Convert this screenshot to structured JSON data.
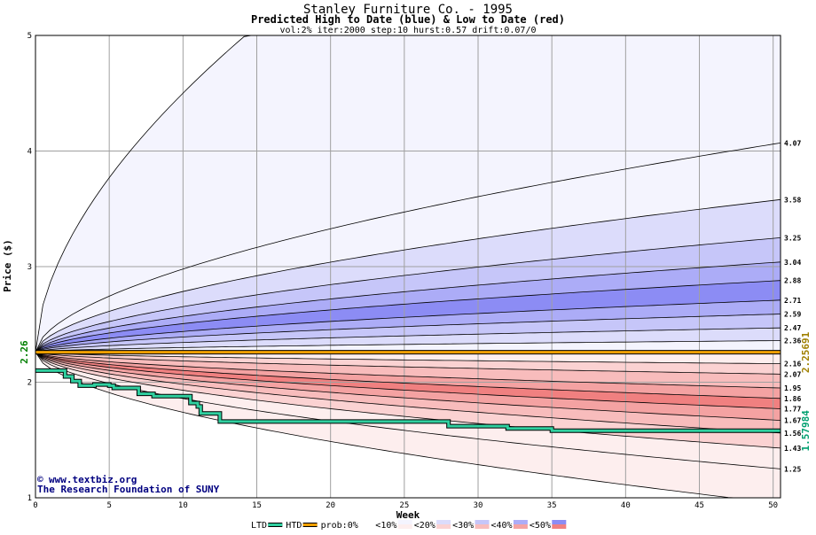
{
  "chart_data": {
    "type": "area",
    "title": "Stanley Furniture Co. - 1995",
    "subtitle": "Predicted High to Date (blue) &  Low to Date (red)",
    "params": "vol:2% iter:2000 step:10 hurst:0.57 drift:0.07/0",
    "xlabel": "Week",
    "ylabel": "Price ($)",
    "xlim": [
      0,
      50.5
    ],
    "ylim": [
      1,
      5
    ],
    "x_ticks": [
      0,
      5,
      10,
      15,
      20,
      25,
      30,
      35,
      40,
      45,
      50
    ],
    "y_ticks": [
      1,
      2,
      3,
      4,
      5
    ],
    "grid": true,
    "start_price": 2.26,
    "start_price_label": "2.26",
    "current_price": 2.25691,
    "current_price_label": "2.25691",
    "ltd_final": 1.57984,
    "ltd_final_label": "1.57984",
    "high_quantiles": [
      {
        "label": "4.07",
        "end": 4.07,
        "fill": "#f4f4fe"
      },
      {
        "label": "3.58",
        "end": 3.58,
        "fill": "#dcdcfb"
      },
      {
        "label": "3.25",
        "end": 3.25,
        "fill": "#c6c6f9"
      },
      {
        "label": "3.04",
        "end": 3.04,
        "fill": "#acacf7"
      },
      {
        "label": "2.88",
        "end": 2.88,
        "fill": "#8c8cf4"
      },
      {
        "label": "2.71",
        "end": 2.71,
        "fill": "#acacf7"
      },
      {
        "label": "2.59",
        "end": 2.59,
        "fill": "#c6c6f9"
      },
      {
        "label": "2.47",
        "end": 2.47,
        "fill": "#dcdcfb"
      },
      {
        "label": "2.36",
        "end": 2.36,
        "fill": "#f4f4fe"
      }
    ],
    "low_quantiles": [
      {
        "label": "2.16",
        "end": 2.16,
        "fill": "#fdeeee"
      },
      {
        "label": "2.07",
        "end": 2.07,
        "fill": "#fbd2d2"
      },
      {
        "label": "1.95",
        "end": 1.95,
        "fill": "#f8bcbc"
      },
      {
        "label": "1.86",
        "end": 1.86,
        "fill": "#f4a2a2"
      },
      {
        "label": "1.77",
        "end": 1.77,
        "fill": "#f08080"
      },
      {
        "label": "1.67",
        "end": 1.67,
        "fill": "#f4a2a2"
      },
      {
        "label": "1.56",
        "end": 1.56,
        "fill": "#f8bcbc"
      },
      {
        "label": "1.43",
        "end": 1.43,
        "fill": "#fbd2d2"
      },
      {
        "label": "1.25",
        "end": 1.25,
        "fill": "#fdeeee"
      }
    ],
    "outer_high_fill": "#f4f4fe",
    "outer_low_fill": "#fdeeee",
    "htd_series": {
      "name": "HTD",
      "color": "#f0a000",
      "values": [
        [
          0,
          2.26
        ],
        [
          50.5,
          2.26
        ]
      ]
    },
    "ltd_series": {
      "name": "LTD",
      "color": "#30d0a0",
      "steps": [
        [
          0,
          2.1
        ],
        [
          2,
          2.1
        ],
        [
          2,
          2.05
        ],
        [
          2.5,
          2.05
        ],
        [
          2.5,
          2.01
        ],
        [
          3,
          2.01
        ],
        [
          3,
          1.97
        ],
        [
          4,
          1.97
        ],
        [
          4,
          1.98
        ],
        [
          5,
          1.98
        ],
        [
          5,
          1.97
        ],
        [
          5.3,
          1.97
        ],
        [
          5.3,
          1.95
        ],
        [
          7,
          1.95
        ],
        [
          7,
          1.9
        ],
        [
          8,
          1.9
        ],
        [
          8,
          1.88
        ],
        [
          10.5,
          1.88
        ],
        [
          10.5,
          1.82
        ],
        [
          11,
          1.82
        ],
        [
          11,
          1.79
        ],
        [
          11.2,
          1.79
        ],
        [
          11.2,
          1.73
        ],
        [
          12.5,
          1.73
        ],
        [
          12.5,
          1.66
        ],
        [
          28,
          1.66
        ],
        [
          28,
          1.62
        ],
        [
          32,
          1.62
        ],
        [
          32,
          1.6
        ],
        [
          35,
          1.6
        ],
        [
          35,
          1.58
        ],
        [
          50.5,
          1.58
        ]
      ]
    },
    "legend": [
      {
        "label": "LTD",
        "color": "#30d0a0"
      },
      {
        "label": "HTD",
        "color": "#f0a000"
      },
      {
        "label": "prob:0%",
        "color": "#ffffff"
      },
      {
        "label": "<10%",
        "color": "#f4f4fe"
      },
      {
        "label": "<20%",
        "color": "#dcdcfb"
      },
      {
        "label": "<30%",
        "color": "#c6c6f9"
      },
      {
        "label": "<40%",
        "color": "#acacf7"
      },
      {
        "label": "<50%",
        "color": "#8c8cf4"
      }
    ],
    "legend_low_colors": [
      "#ffffff",
      "#fdeeee",
      "#fbd2d2",
      "#f8bcbc",
      "#f4a2a2",
      "#f08080"
    ]
  },
  "credit": {
    "website": "www.textbiz.org",
    "foundation": "The Research Foundation of SUNY"
  }
}
